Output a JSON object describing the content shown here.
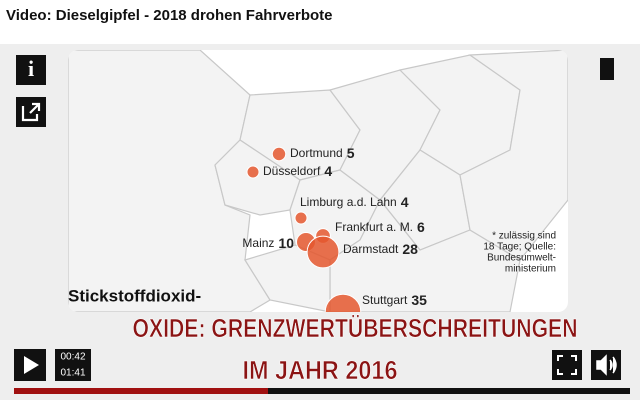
{
  "header": {
    "title": "Video: Dieselgipfel - 2018 drohen Fahrverbote"
  },
  "map": {
    "cities": [
      {
        "name": "Dortmund",
        "value": 5
      },
      {
        "name": "Düsseldorf",
        "value": 4
      },
      {
        "name": "Limburg a.d. Lahn",
        "value": 4
      },
      {
        "name": "Frankfurt a. M.",
        "value": 6
      },
      {
        "name": "Mainz",
        "value": 10
      },
      {
        "name": "Darmstadt",
        "value": 28
      },
      {
        "name": "Stuttgart",
        "value": 35
      }
    ],
    "note": [
      "* zulässig sind",
      "18 Tage; Quelle:",
      "Bundesumwelt-",
      "ministerium"
    ],
    "heading": "Stickstoffdioxid-"
  },
  "subtitles": [
    "OXIDE: GRENZWERTÜBERSCHREITUNGEN",
    "IM JAHR 2016"
  ],
  "player": {
    "current_time": "00:42",
    "duration": "01:41"
  }
}
